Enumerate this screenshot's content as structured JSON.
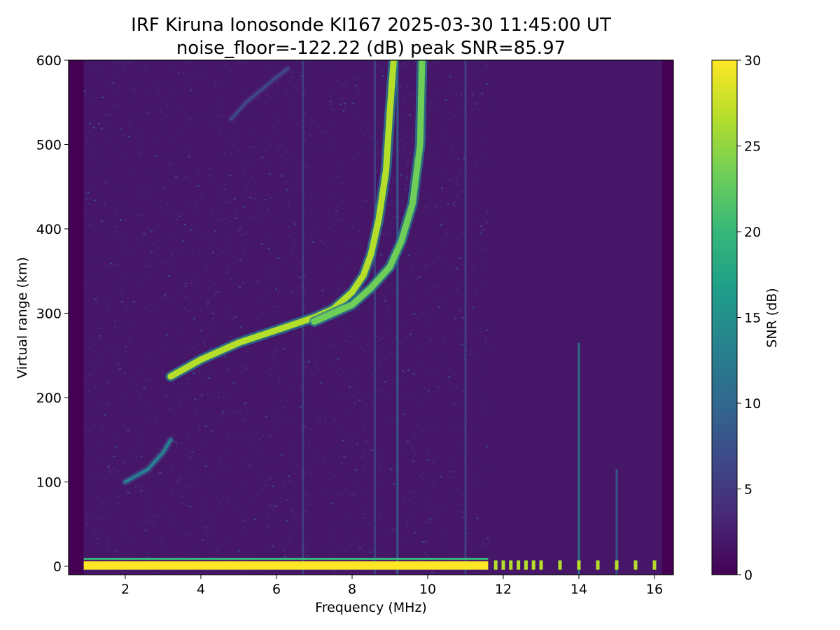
{
  "chart_data": {
    "type": "heatmap",
    "title_line1": "IRF Kiruna Ionosonde KI167 2025-03-30 11:45:00  UT",
    "title_line2": "noise_floor=-122.22 (dB) peak SNR=85.97",
    "xlabel": "Frequency (MHz)",
    "ylabel": "Virtual range (km)",
    "colorbar_label": "SNR (dB)",
    "xlim": [
      0.5,
      16.5
    ],
    "ylim": [
      -10,
      600
    ],
    "clim": [
      0,
      30
    ],
    "data_freq_range": [
      0.9,
      16.2
    ],
    "x_ticks": [
      2,
      4,
      6,
      8,
      10,
      12,
      14,
      16
    ],
    "x_tick_labels": [
      "2",
      "4",
      "6",
      "8",
      "10",
      "12",
      "14",
      "16"
    ],
    "y_ticks": [
      0,
      100,
      200,
      300,
      400,
      500,
      600
    ],
    "y_tick_labels": [
      "0",
      "100",
      "200",
      "300",
      "400",
      "500",
      "600"
    ],
    "colorbar_ticks": [
      0,
      5,
      10,
      15,
      20,
      25,
      30
    ],
    "colorbar_tick_labels": [
      "0",
      "5",
      "10",
      "15",
      "20",
      "25",
      "30"
    ],
    "colormap": [
      "#440154",
      "#482878",
      "#3e4989",
      "#31688e",
      "#26828e",
      "#1f9e89",
      "#35b779",
      "#6ece58",
      "#b5de2b",
      "#fde725"
    ],
    "traces": [
      {
        "name": "ground-echo",
        "points": [
          [
            0.9,
            0
          ],
          [
            16.2,
            0
          ]
        ],
        "snr": 30
      },
      {
        "name": "e-layer",
        "points": [
          [
            2.0,
            100
          ],
          [
            2.6,
            115
          ],
          [
            3.0,
            135
          ],
          [
            3.2,
            150
          ]
        ],
        "snr": 14
      },
      {
        "name": "f-layer-o-mode",
        "points": [
          [
            3.2,
            225
          ],
          [
            4.0,
            245
          ],
          [
            5.0,
            265
          ],
          [
            6.0,
            280
          ],
          [
            7.0,
            295
          ],
          [
            7.5,
            305
          ],
          [
            8.0,
            325
          ],
          [
            8.3,
            345
          ],
          [
            8.5,
            370
          ],
          [
            8.7,
            410
          ],
          [
            8.9,
            470
          ],
          [
            9.0,
            540
          ],
          [
            9.1,
            600
          ]
        ],
        "snr": 26
      },
      {
        "name": "f-layer-x-mode",
        "points": [
          [
            7.0,
            290
          ],
          [
            7.5,
            300
          ],
          [
            8.0,
            310
          ],
          [
            8.5,
            330
          ],
          [
            9.0,
            355
          ],
          [
            9.3,
            385
          ],
          [
            9.6,
            430
          ],
          [
            9.8,
            500
          ],
          [
            9.85,
            600
          ]
        ],
        "snr": 24
      },
      {
        "name": "f-layer-faint-spread",
        "points": [
          [
            4.8,
            530
          ],
          [
            5.2,
            550
          ],
          [
            5.6,
            565
          ],
          [
            6.0,
            580
          ],
          [
            6.3,
            590
          ]
        ],
        "snr": 6
      }
    ],
    "interference_lines": [
      {
        "freq": 6.7,
        "snr": 6
      },
      {
        "freq": 8.6,
        "snr": 8
      },
      {
        "freq": 9.2,
        "snr": 10
      },
      {
        "freq": 11.0,
        "snr": 5
      },
      {
        "freq": 14.0,
        "snr": 13
      },
      {
        "freq": 15.0,
        "snr": 10
      }
    ],
    "high_freq_pulses": [
      11.8,
      12.0,
      12.2,
      12.4,
      12.6,
      12.8,
      13.0,
      13.5,
      14.0,
      14.5,
      15.0,
      15.5,
      16.0
    ]
  }
}
